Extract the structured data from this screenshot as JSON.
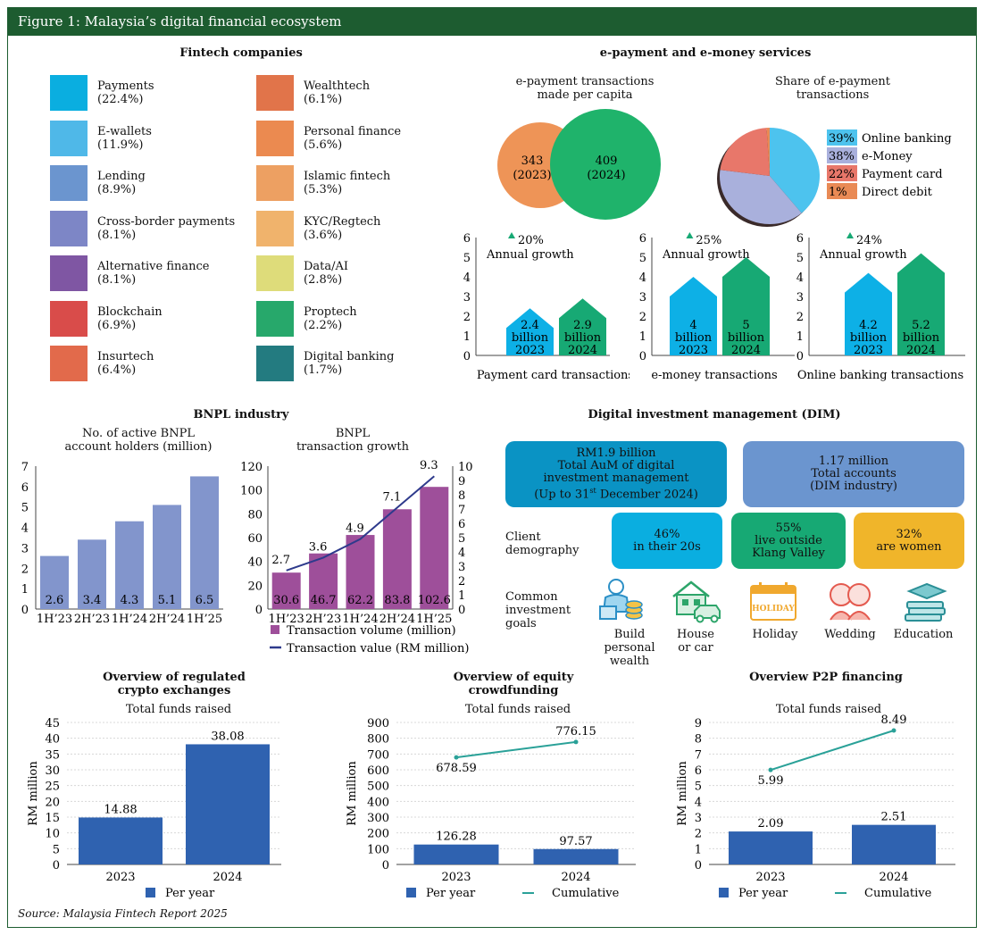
{
  "figure_title": "Figure 1: Malaysia’s digital financial ecosystem",
  "fintech": {
    "title": "Fintech companies",
    "items": [
      {
        "name": "Payments",
        "pct": "(22.4%)",
        "color": "#0aaee0"
      },
      {
        "name": "E-wallets",
        "pct": "(11.9%)",
        "color": "#4fb8e8"
      },
      {
        "name": "Lending",
        "pct": "(8.9%)",
        "color": "#6b95cf"
      },
      {
        "name": "Cross-border payments",
        "pct": "(8.1%)",
        "color": "#7d86c6"
      },
      {
        "name": "Alternative finance",
        "pct": "(8.1%)",
        "color": "#7f56a3"
      },
      {
        "name": "Blockchain",
        "pct": "(6.9%)",
        "color": "#d94c4a"
      },
      {
        "name": "Insurtech",
        "pct": "(6.4%)",
        "color": "#e26a4b"
      },
      {
        "name": "Wealthtech",
        "pct": "(6.1%)",
        "color": "#e1744a"
      },
      {
        "name": "Personal finance",
        "pct": "(5.6%)",
        "color": "#eb8a50"
      },
      {
        "name": "Islamic fintech",
        "pct": "(5.3%)",
        "color": "#eda062"
      },
      {
        "name": "KYC/Regtech",
        "pct": "(3.6%)",
        "color": "#f0b36c"
      },
      {
        "name": "Data/AI",
        "pct": "(2.8%)",
        "color": "#dedc7a"
      },
      {
        "name": "Proptech",
        "pct": "(2.2%)",
        "color": "#27a86b"
      },
      {
        "name": "Digital banking",
        "pct": "(1.7%)",
        "color": "#237b80"
      }
    ]
  },
  "epay": {
    "title": "e-payment and e-money services",
    "per_capita_title": "e-payment transactions made per capita",
    "per_capita_title_l1": "e-payment transactions",
    "per_capita_title_l2": "made per capita",
    "circle_2023_value": "343",
    "circle_2023_year": "(2023)",
    "circle_2024_value": "409",
    "circle_2024_year": "(2024)",
    "share_title_l1": "Share of e-payment",
    "share_title_l2": "transactions"
  },
  "growth_common": {
    "annual_growth_label": "Annual growth"
  },
  "chart_data": [
    {
      "type": "pie",
      "title": "Share of e-payment transactions",
      "slices": [
        {
          "label": "Online banking",
          "pct_label": "39%",
          "value": 39,
          "color": "#4dc3ee"
        },
        {
          "label": "e-Money",
          "pct_label": "38%",
          "value": 38,
          "color": "#a9b0dc"
        },
        {
          "label": "Payment card",
          "pct_label": "22%",
          "value": 22,
          "color": "#e8776a"
        },
        {
          "label": "Direct debit",
          "pct_label": "1%",
          "value": 1,
          "color": "#e98a55"
        }
      ]
    },
    {
      "type": "bar",
      "xlabel": "Payment card transactions",
      "growth": "20%",
      "ylim": [
        0,
        6
      ],
      "yticks": [
        "0",
        "1",
        "2",
        "3",
        "4",
        "5",
        "6"
      ],
      "bars": [
        {
          "value": 2.4,
          "l1": "2.4",
          "l2": "billion",
          "l3": "2023",
          "color": "#0db0e6"
        },
        {
          "value": 2.9,
          "l1": "2.9",
          "l2": "billion",
          "l3": "2024",
          "color": "#17a974"
        }
      ]
    },
    {
      "type": "bar",
      "xlabel": "e-money transactions",
      "growth": "25%",
      "ylim": [
        0,
        6
      ],
      "yticks": [
        "0",
        "1",
        "2",
        "3",
        "4",
        "5",
        "6"
      ],
      "bars": [
        {
          "value": 4,
          "l1": "4",
          "l2": "billion",
          "l3": "2023",
          "color": "#0db0e6"
        },
        {
          "value": 5,
          "l1": "5",
          "l2": "billion",
          "l3": "2024",
          "color": "#17a974"
        }
      ]
    },
    {
      "type": "bar",
      "xlabel": "Online banking transactions",
      "growth": "24%",
      "ylim": [
        0,
        6
      ],
      "yticks": [
        "0",
        "1",
        "2",
        "3",
        "4",
        "5",
        "6"
      ],
      "bars": [
        {
          "value": 4.2,
          "l1": "4.2",
          "l2": "billion",
          "l3": "2023",
          "color": "#0db0e6"
        },
        {
          "value": 5.2,
          "l1": "5.2",
          "l2": "billion",
          "l3": "2024",
          "color": "#17a974"
        }
      ]
    },
    {
      "type": "bar",
      "title": "No. of active BNPL account holders (million)",
      "categories": [
        "1H’23",
        "2H’23",
        "1H’24",
        "2H’24",
        "1H’25"
      ],
      "values": [
        2.6,
        3.4,
        4.3,
        5.1,
        6.5
      ],
      "value_labels": [
        "2.6",
        "3.4",
        "4.3",
        "5.1",
        "6.5"
      ],
      "ylim": [
        0,
        7
      ],
      "yticks": [
        "0",
        "1",
        "2",
        "3",
        "4",
        "5",
        "6",
        "7"
      ],
      "color": "#8295cc"
    },
    {
      "type": "bar",
      "title": "BNPL transaction growth",
      "categories": [
        "1H’23",
        "2H’23",
        "1H’24",
        "2H’24",
        "1H’25"
      ],
      "series": [
        {
          "name": "Transaction volume (million)",
          "values": [
            30.6,
            46.7,
            62.2,
            83.8,
            102.6
          ],
          "labels": [
            "30.6",
            "46.7",
            "62.2",
            "83.8",
            "102.6"
          ],
          "color": "#9e4f9a",
          "axis": "left"
        },
        {
          "name": "Transaction value (RM million)",
          "values": [
            2.7,
            3.6,
            4.9,
            7.1,
            9.3
          ],
          "labels": [
            "2.7",
            "3.6",
            "4.9",
            "7.1",
            "9.3"
          ],
          "color": "#2e3a8c",
          "axis": "right",
          "type": "line"
        }
      ],
      "ylim_left": [
        0,
        120
      ],
      "yticks_left": [
        "0",
        "20",
        "40",
        "60",
        "80",
        "100",
        "120"
      ],
      "ylim_right": [
        0,
        10
      ],
      "yticks_right": [
        "0",
        "1",
        "2",
        "3",
        "4",
        "5",
        "6",
        "7",
        "8",
        "9",
        "10"
      ]
    },
    {
      "type": "bar",
      "title": "Overview of regulated crypto exchanges",
      "subtitle": "Total funds raised",
      "ylabel": "RM million",
      "categories": [
        "2023",
        "2024"
      ],
      "series": [
        {
          "name": "Per year",
          "values": [
            14.88,
            38.08
          ],
          "labels": [
            "14.88",
            "38.08"
          ],
          "color": "#2f62b0"
        }
      ],
      "ylim": [
        0,
        45
      ],
      "yticks": [
        "0",
        "5",
        "10",
        "15",
        "20",
        "25",
        "30",
        "35",
        "40",
        "45"
      ]
    },
    {
      "type": "bar",
      "title": "Overview of equity crowdfunding",
      "subtitle": "Total funds raised",
      "ylabel": "RM million",
      "categories": [
        "2023",
        "2024"
      ],
      "series": [
        {
          "name": "Per year",
          "values": [
            126.28,
            97.57
          ],
          "labels": [
            "126.28",
            "97.57"
          ],
          "color": "#2f62b0"
        },
        {
          "name": "Cumulative",
          "values": [
            678.59,
            776.15
          ],
          "labels": [
            "678.59",
            "776.15"
          ],
          "color": "#2aa198",
          "type": "line"
        }
      ],
      "ylim": [
        0,
        900
      ],
      "yticks": [
        "0",
        "100",
        "200",
        "300",
        "400",
        "500",
        "600",
        "700",
        "800",
        "900"
      ]
    },
    {
      "type": "bar",
      "title": "Overview P2P financing",
      "subtitle": "Total funds raised",
      "ylabel": "RM million",
      "categories": [
        "2023",
        "2024"
      ],
      "series": [
        {
          "name": "Per year",
          "values": [
            2.09,
            2.51
          ],
          "labels": [
            "2.09",
            "2.51"
          ],
          "color": "#2f62b0"
        },
        {
          "name": "Cumulative",
          "values": [
            5.99,
            8.49
          ],
          "labels": [
            "5.99",
            "8.49"
          ],
          "color": "#2aa198",
          "type": "line"
        }
      ],
      "ylim": [
        0,
        9
      ],
      "yticks": [
        "0",
        "1",
        "2",
        "3",
        "4",
        "5",
        "6",
        "7",
        "8",
        "9"
      ]
    }
  ],
  "bnpl": {
    "title": "BNPL industry",
    "holders_title_l1": "No. of active BNPL",
    "holders_title_l2": "account holders (million)",
    "growth_title_l1": "BNPL",
    "growth_title_l2": "transaction growth",
    "legend_volume": "Transaction volume (million)",
    "legend_value": "Transaction value (RM million)"
  },
  "dim": {
    "title": "Digital investment management (DIM)",
    "aum_l1": "RM1.9 billion",
    "aum_l2": "Total AuM of digital",
    "aum_l3": "investment management",
    "aum_l4a": "(Up to 31",
    "aum_l4sup": "st",
    "aum_l4b": " December 2024)",
    "accounts_l1": "1.17 million",
    "accounts_l2": "Total accounts",
    "accounts_l3": "(DIM industry)",
    "client_label_l1": "Client",
    "client_label_l2": "demography",
    "demo1_l1": "46%",
    "demo1_l2": "in their 20s",
    "demo2_l1": "55%",
    "demo2_l2": "live outside",
    "demo2_l3": "Klang Valley",
    "demo3_l1": "32%",
    "demo3_l2": "are women",
    "goals_label_l1": "Common",
    "goals_label_l2": "investment",
    "goals_label_l3": "goals",
    "goal1_l1": "Build",
    "goal1_l2": "personal wealth",
    "goal2_l1": "House",
    "goal2_l2": "or car",
    "goal3": "Holiday",
    "goal4": "Wedding",
    "goal5": "Education",
    "holiday_icon_text": "HOLIDAY"
  },
  "lower": {
    "crypto_title_l1": "Overview of regulated",
    "crypto_title_l2": "crypto exchanges",
    "ecf_title_l1": "Overview of equity",
    "ecf_title_l2": "crowdfunding",
    "p2p_title": "Overview P2P financing",
    "subtitle": "Total funds raised",
    "ylabel": "RM million",
    "per_year": "Per year",
    "cumulative": "Cumulative"
  },
  "source": "Source: Malaysia Fintech Report 2025",
  "colors": {
    "header_green": "#1d5c30",
    "dim_aum": "#0a93c4",
    "dim_accounts": "#6b95cf",
    "demo1": "#0aaee0",
    "demo2": "#17a974",
    "demo3": "#f0b52a"
  }
}
